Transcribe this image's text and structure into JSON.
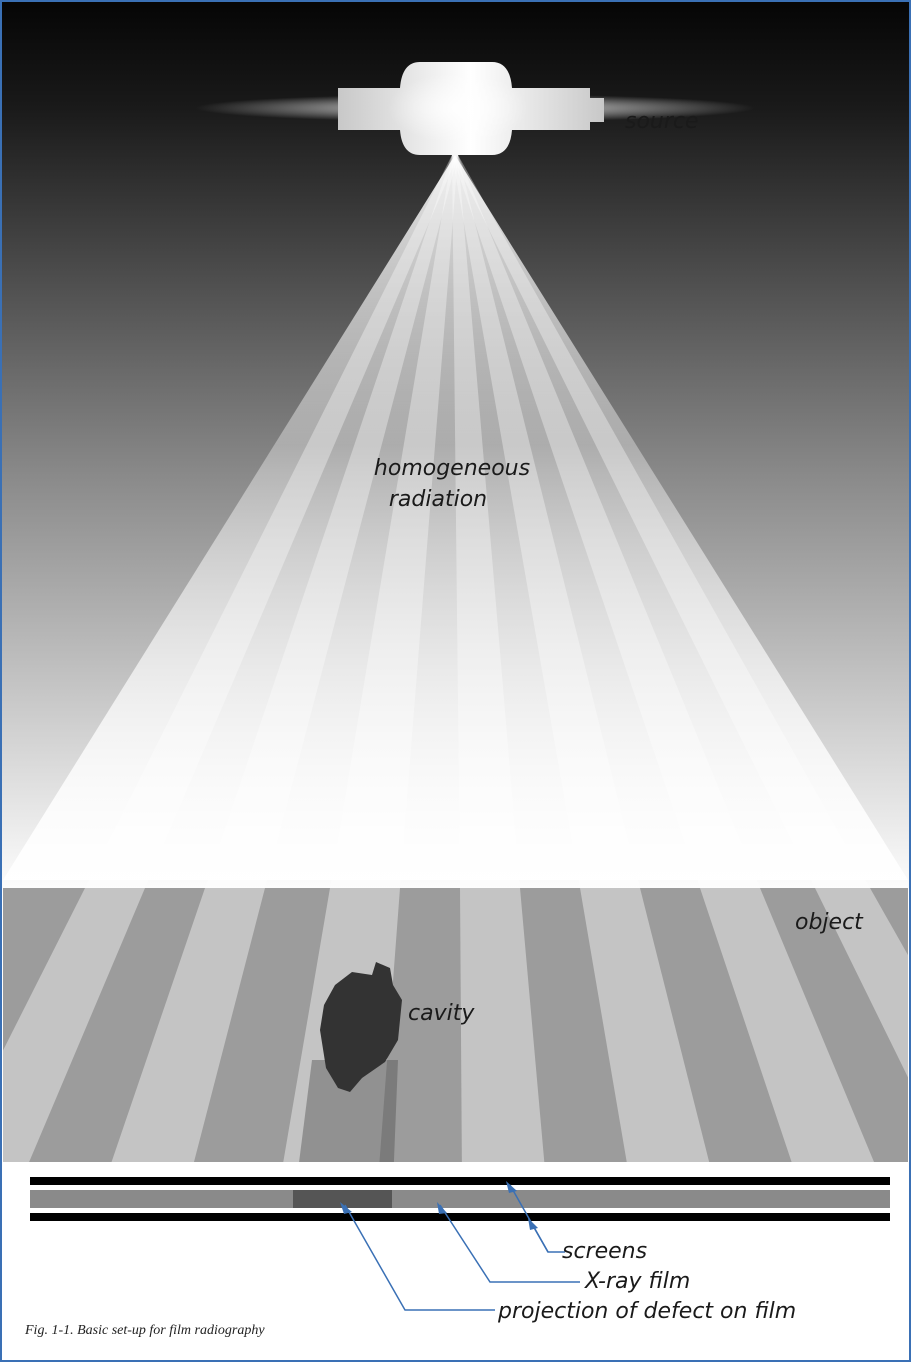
{
  "labels": {
    "source": "source",
    "radiation": [
      "homogeneous",
      "radiation"
    ],
    "object": "object",
    "cavity": "cavity",
    "screens": "screens",
    "film": "X-ray film",
    "projection": "projection of defect on film"
  },
  "caption": "Fig. 1-1. Basic set-up for film radiography"
}
